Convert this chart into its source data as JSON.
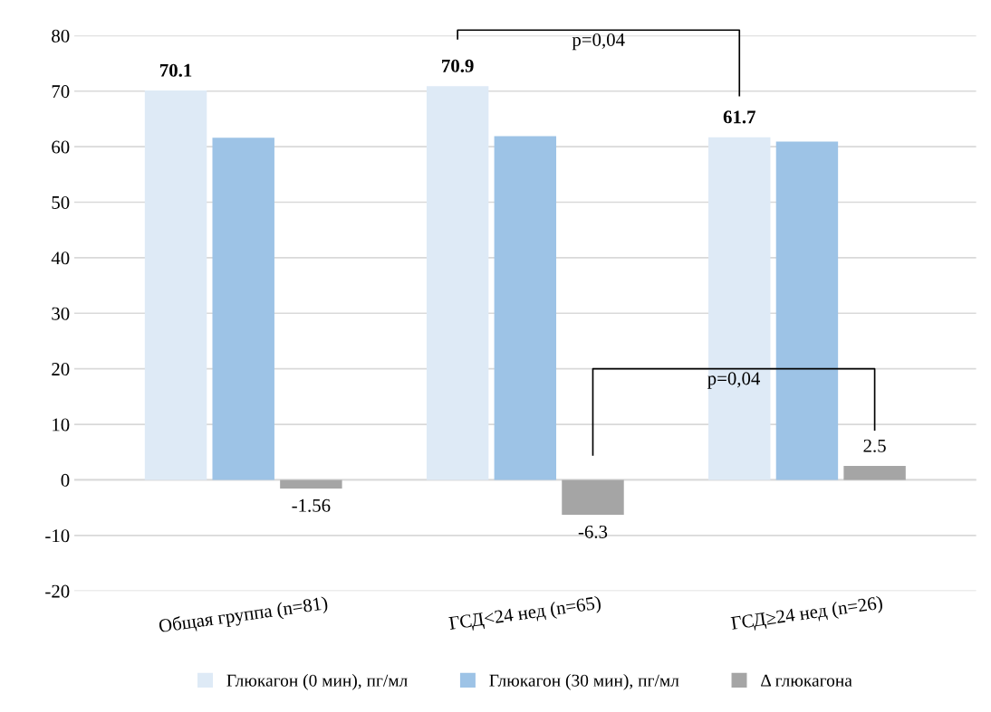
{
  "chart_data": {
    "type": "bar",
    "categories": [
      "Общая группа (n=81)",
      "ГСД<24 нед (n=65)",
      "ГСД≥24 нед (n=26)"
    ],
    "series": [
      {
        "name": "Глюкагон (0 мин), пг/мл",
        "color": "#deeaf6",
        "values": [
          70.1,
          70.9,
          61.7
        ],
        "value_labels": [
          "70.1",
          "70.9",
          "61.7"
        ]
      },
      {
        "name": "Глюкагон (30 мин), пг/мл",
        "color": "#9dc3e6",
        "values": [
          61.6,
          61.9,
          60.9
        ]
      },
      {
        "name": "Δ глюкагона",
        "color": "#a5a5a5",
        "values": [
          -1.56,
          -6.3,
          2.5
        ],
        "value_labels": [
          "-1.56",
          "-6.3",
          "2.5"
        ]
      }
    ],
    "ylim": [
      -20,
      80
    ],
    "yticks": [
      -20,
      -10,
      0,
      10,
      20,
      30,
      40,
      50,
      60,
      70,
      80
    ],
    "annotations": [
      "p=0,04",
      "p=0,04"
    ],
    "grid": "y",
    "legend": "bottom"
  }
}
